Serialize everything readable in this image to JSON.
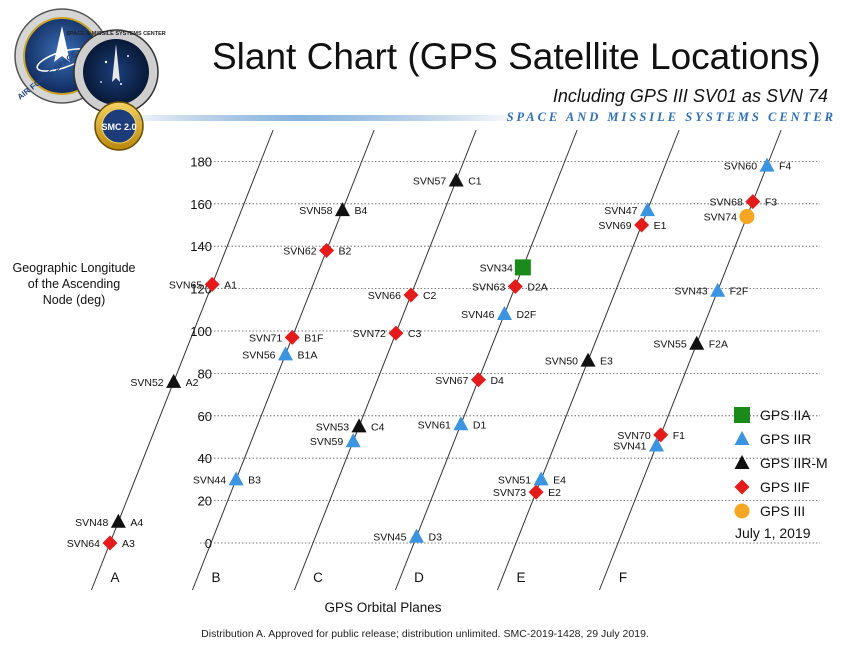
{
  "header": {
    "title": "Slant Chart (GPS Satellite Locations)",
    "subtitle": "Including GPS III SV01 as SVN 74",
    "organization": "SPACE AND MISSILE SYSTEMS CENTER"
  },
  "logos": {
    "left_seal_text": "AIR FORCE SPACE",
    "right_seal_text": "SPACE & MISSILE SYSTEMS CENTER",
    "badge_text": "SMC 2.0"
  },
  "footer": {
    "text": "Distribution A. Approved for public release; distribution unlimited. SMC-2019-1428, 29 July 2019."
  },
  "chart_data": {
    "type": "scatter",
    "ylabel": "Geographic Longitude of the Ascending Node (deg)",
    "ylabel_lines": [
      "Geographic Longitude",
      "of the Ascending",
      "Node (deg)"
    ],
    "xlabel": "GPS Orbital Planes",
    "date": "July 1, 2019",
    "ylim": [
      0,
      180
    ],
    "y_ticks": [
      "0",
      "20",
      "40",
      "60",
      "80",
      "100",
      "120",
      "140",
      "160",
      "180"
    ],
    "categories": [
      "A",
      "B",
      "C",
      "D",
      "E",
      "F"
    ],
    "grid": true,
    "legend_position": "right",
    "legend": [
      {
        "name": "GPS IIA",
        "shape": "square",
        "color": "#1a8a1a"
      },
      {
        "name": "GPS IIR",
        "shape": "triangle",
        "color": "#3a94e0"
      },
      {
        "name": "GPS IIR-M",
        "shape": "triangle",
        "color": "#111111"
      },
      {
        "name": "GPS IIF",
        "shape": "diamond",
        "color": "#e31b1b"
      },
      {
        "name": "GPS III",
        "shape": "circle",
        "color": "#f5a623"
      }
    ],
    "points": [
      {
        "svn": "SVN64",
        "slot": "A3",
        "plane": "A",
        "type": "GPS IIF",
        "y": 0
      },
      {
        "svn": "SVN48",
        "slot": "A4",
        "plane": "A",
        "type": "GPS IIR-M",
        "y": 10
      },
      {
        "svn": "SVN52",
        "slot": "A2",
        "plane": "A",
        "type": "GPS IIR-M",
        "y": 76
      },
      {
        "svn": "SVN65",
        "slot": "A1",
        "plane": "A",
        "type": "GPS IIF",
        "y": 122
      },
      {
        "svn": "SVN44",
        "slot": "B3",
        "plane": "B",
        "type": "GPS IIR",
        "y": 30
      },
      {
        "svn": "SVN56",
        "slot": "B1A",
        "plane": "B",
        "type": "GPS IIR",
        "y": 89
      },
      {
        "svn": "SVN71",
        "slot": "B1F",
        "plane": "B",
        "type": "GPS IIF",
        "y": 97
      },
      {
        "svn": "SVN62",
        "slot": "B2",
        "plane": "B",
        "type": "GPS IIF",
        "y": 138
      },
      {
        "svn": "SVN58",
        "slot": "B4",
        "plane": "B",
        "type": "GPS IIR-M",
        "y": 157
      },
      {
        "svn": "SVN59",
        "slot": "",
        "plane": "C",
        "type": "GPS IIR",
        "y": 48
      },
      {
        "svn": "SVN53",
        "slot": "C4",
        "plane": "C",
        "type": "GPS IIR-M",
        "y": 55
      },
      {
        "svn": "SVN72",
        "slot": "C3",
        "plane": "C",
        "type": "GPS IIF",
        "y": 99
      },
      {
        "svn": "SVN66",
        "slot": "C2",
        "plane": "C",
        "type": "GPS IIF",
        "y": 117
      },
      {
        "svn": "SVN57",
        "slot": "C1",
        "plane": "C",
        "type": "GPS IIR-M",
        "y": 171
      },
      {
        "svn": "SVN45",
        "slot": "D3",
        "plane": "D",
        "type": "GPS IIR",
        "y": 3
      },
      {
        "svn": "SVN61",
        "slot": "D1",
        "plane": "D",
        "type": "GPS IIR",
        "y": 56
      },
      {
        "svn": "SVN67",
        "slot": "D4",
        "plane": "D",
        "type": "GPS IIF",
        "y": 77
      },
      {
        "svn": "SVN46",
        "slot": "D2F",
        "plane": "D",
        "type": "GPS IIR",
        "y": 108
      },
      {
        "svn": "SVN63",
        "slot": "D2A",
        "plane": "D",
        "type": "GPS IIF",
        "y": 121
      },
      {
        "svn": "SVN34",
        "slot": "",
        "plane": "D",
        "type": "GPS IIA",
        "y": 130
      },
      {
        "svn": "SVN73",
        "slot": "E2",
        "plane": "E",
        "type": "GPS IIF",
        "y": 24
      },
      {
        "svn": "SVN51",
        "slot": "E4",
        "plane": "E",
        "type": "GPS IIR",
        "y": 30
      },
      {
        "svn": "SVN50",
        "slot": "E3",
        "plane": "E",
        "type": "GPS IIR-M",
        "y": 86
      },
      {
        "svn": "SVN69",
        "slot": "E1",
        "plane": "E",
        "type": "GPS IIF",
        "y": 150
      },
      {
        "svn": "SVN47",
        "slot": "",
        "plane": "E",
        "type": "GPS IIR",
        "y": 157
      },
      {
        "svn": "SVN41",
        "slot": "",
        "plane": "F",
        "type": "GPS IIR",
        "y": 46
      },
      {
        "svn": "SVN70",
        "slot": "F1",
        "plane": "F",
        "type": "GPS IIF",
        "y": 51
      },
      {
        "svn": "SVN55",
        "slot": "F2A",
        "plane": "F",
        "type": "GPS IIR-M",
        "y": 94
      },
      {
        "svn": "SVN43",
        "slot": "F2F",
        "plane": "F",
        "type": "GPS IIR",
        "y": 119
      },
      {
        "svn": "SVN74",
        "slot": "",
        "plane": "F",
        "type": "GPS III",
        "y": 154
      },
      {
        "svn": "SVN68",
        "slot": "F3",
        "plane": "F",
        "type": "GPS IIF",
        "y": 161
      },
      {
        "svn": "SVN60",
        "slot": "F4",
        "plane": "F",
        "type": "GPS IIR",
        "y": 178
      }
    ]
  }
}
